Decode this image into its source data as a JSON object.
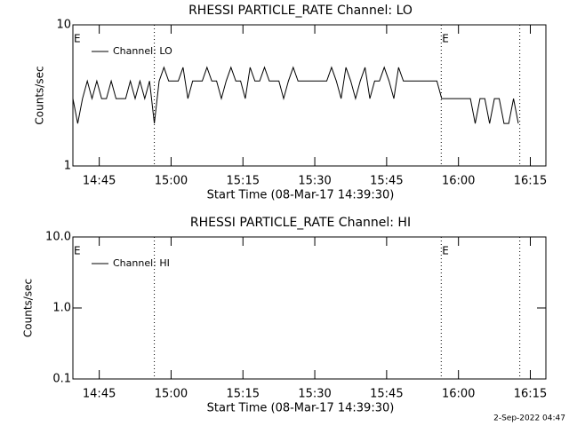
{
  "chart_data": [
    {
      "type": "line",
      "title": "RHESSI PARTICLE_RATE Channel: LO",
      "ylabel": "Counts/sec",
      "xlabel": "Start Time (08-Mar-17 14:39:30)",
      "log_y": true,
      "ylim": [
        1,
        10
      ],
      "yticks": [
        1,
        10
      ],
      "xlim": [
        0,
        98.75
      ],
      "xticks": [
        {
          "value": 5.5,
          "label": "14:45"
        },
        {
          "value": 20.5,
          "label": "15:00"
        },
        {
          "value": 35.5,
          "label": "15:15"
        },
        {
          "value": 50.5,
          "label": "15:30"
        },
        {
          "value": 65.5,
          "label": "15:45"
        },
        {
          "value": 80.5,
          "label": "16:00"
        },
        {
          "value": 95.5,
          "label": "16:15"
        }
      ],
      "vlines": [
        17,
        76.9,
        93.3
      ],
      "annotations": [
        {
          "text": "E",
          "x": 0
        },
        {
          "text": "E",
          "x": 76.9
        }
      ],
      "x": [
        0,
        1,
        2,
        3,
        4,
        5,
        6,
        7,
        8,
        9,
        10,
        11,
        12,
        13,
        14,
        15,
        16,
        17,
        18,
        19,
        20,
        21,
        22,
        23,
        24,
        25,
        26,
        27,
        28,
        29,
        30,
        31,
        32,
        33,
        34,
        35,
        36,
        37,
        38,
        39,
        40,
        41,
        42,
        43,
        44,
        45,
        46,
        47,
        48,
        49,
        50,
        51,
        52,
        53,
        54,
        55,
        56,
        57,
        58,
        59,
        60,
        61,
        62,
        63,
        64,
        65,
        66,
        67,
        68,
        69,
        70,
        71,
        72,
        73,
        74,
        75,
        76,
        77,
        78,
        79,
        80,
        81,
        82,
        83,
        84,
        85,
        86,
        87,
        88,
        89,
        90,
        91,
        92,
        93
      ],
      "series": [
        {
          "name": "Channel: LO",
          "color": "#000000",
          "values": [
            3,
            2,
            3,
            4,
            3,
            4,
            3,
            3,
            4,
            3,
            3,
            3,
            4,
            3,
            4,
            3,
            4,
            2,
            4,
            5,
            4,
            4,
            4,
            5,
            3,
            4,
            4,
            4,
            5,
            4,
            4,
            3,
            4,
            5,
            4,
            4,
            3,
            5,
            4,
            4,
            5,
            4,
            4,
            4,
            3,
            4,
            5,
            4,
            4,
            4,
            4,
            4,
            4,
            4,
            5,
            4,
            3,
            5,
            4,
            3,
            4,
            5,
            3,
            4,
            4,
            5,
            4,
            3,
            5,
            4,
            4,
            4,
            4,
            4,
            4,
            4,
            4,
            3,
            3,
            3,
            3,
            3,
            3,
            3,
            2,
            3,
            3,
            2,
            3,
            3,
            2,
            2,
            3,
            2
          ]
        }
      ]
    },
    {
      "type": "line",
      "title": "RHESSI PARTICLE_RATE Channel: HI",
      "ylabel": "Counts/sec",
      "xlabel": "Start Time (08-Mar-17 14:39:30)",
      "log_y": true,
      "ylim": [
        0.1,
        10
      ],
      "yticks": [
        0.1,
        {
          "value": 1,
          "label": "1.0"
        },
        {
          "value": 10,
          "label": "10.0"
        }
      ],
      "xlim": [
        0,
        98.75
      ],
      "xticks": [
        {
          "value": 5.5,
          "label": "14:45"
        },
        {
          "value": 20.5,
          "label": "15:00"
        },
        {
          "value": 35.5,
          "label": "15:15"
        },
        {
          "value": 50.5,
          "label": "15:30"
        },
        {
          "value": 65.5,
          "label": "15:45"
        },
        {
          "value": 80.5,
          "label": "16:00"
        },
        {
          "value": 95.5,
          "label": "16:15"
        }
      ],
      "vlines": [
        17,
        76.9,
        93.3
      ],
      "annotations": [
        {
          "text": "E",
          "x": 0
        },
        {
          "text": "E",
          "x": 76.9
        }
      ],
      "x": [],
      "series": [
        {
          "name": "Channel: HI",
          "color": "#000000",
          "values": []
        }
      ]
    }
  ],
  "footer": "2-Sep-2022 04:47"
}
